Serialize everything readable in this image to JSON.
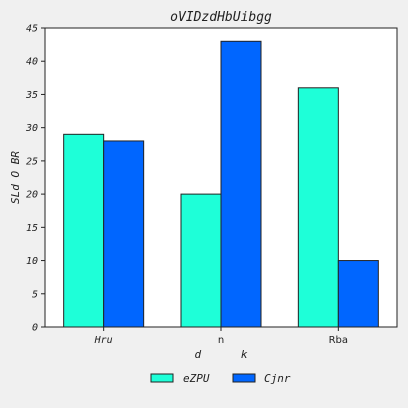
{
  "chart_data": {
    "type": "bar",
    "title": "oVIDzdHbUibgg",
    "xlabel": "d      k",
    "ylabel": "SLd O BR",
    "categories": [
      "Hru",
      "n",
      "Rba"
    ],
    "series": [
      {
        "name": "eZPU",
        "values": [
          29,
          20,
          36
        ],
        "color": "#1effd8"
      },
      {
        "name": "Cjnr",
        "values": [
          28,
          43,
          10
        ],
        "color": "#0066ff"
      }
    ],
    "ylim": [
      0,
      45
    ],
    "yticks": [
      0,
      5,
      10,
      15,
      20,
      25,
      30,
      35,
      40,
      45
    ],
    "grid": false,
    "legend": "bottom-center"
  }
}
